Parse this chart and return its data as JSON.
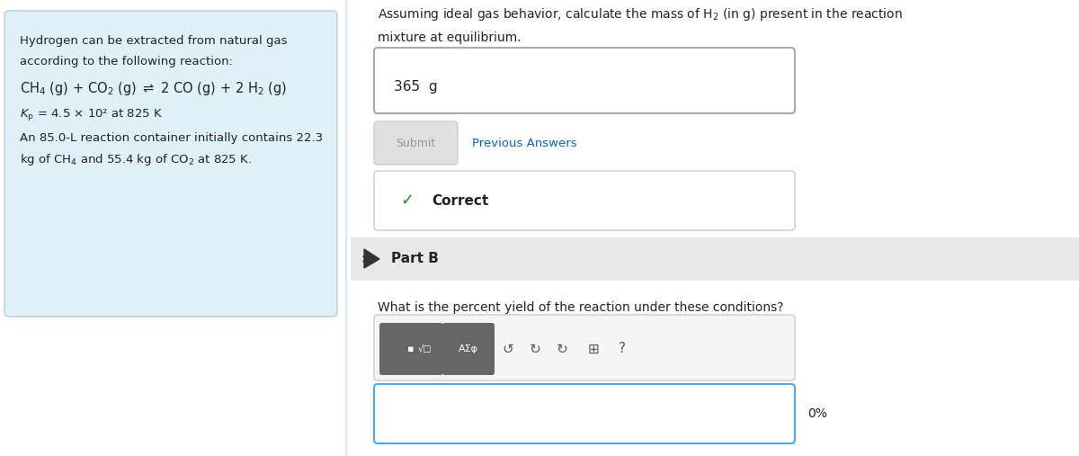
{
  "bg_color": "#f0f7fa",
  "main_bg": "#ffffff",
  "left_panel_bg": "#dff0f7",
  "left_panel_border": "#b0cfe0",
  "figsize": [
    12.0,
    5.07
  ],
  "dpi": 100,
  "left_text_lines": [
    "Hydrogen can be extracted from natural gas",
    "according to the following reaction:"
  ],
  "reaction_line": "CH₄ (g) + CO₂ (g) ⇌ 2 CO (g) + 2 H₂ (g)",
  "kp_line": "Kₚ = 4.5 × 10² at 825 K",
  "container_line1": "An 85.0-L reaction container initially contains 22.3",
  "container_line2": "kg of CH₄ and 55.4 kg of CO₂ at 825 K.",
  "part_a_question": "Assuming ideal gas behavior, calculate the mass of H₂ (in g) present in the reaction\nmixture at equilibrium.",
  "answer_text": "365  g",
  "submit_text": "Submit",
  "prev_answers_text": "Previous Answers",
  "correct_text": "✓  Correct",
  "part_b_label": "Part B",
  "part_b_question": "What is the percent yield of the reaction under these conditions?",
  "toolbar_text": "█√□   AΣϕ     ↺   ↻   ↻   ⋯   ?",
  "percent_text": "0%",
  "answer_box_border": "#999999",
  "correct_box_border": "#cccccc",
  "correct_check_color": "#2e8b2e",
  "submit_bg": "#e0e0e0",
  "submit_text_color": "#999999",
  "prev_answers_color": "#0066cc",
  "part_b_bg": "#e8e8e8",
  "toolbar_bg": "#666666",
  "toolbar_bg2": "#888888",
  "input_border_color": "#4da6ff",
  "part_b_arrow_color": "#333333"
}
